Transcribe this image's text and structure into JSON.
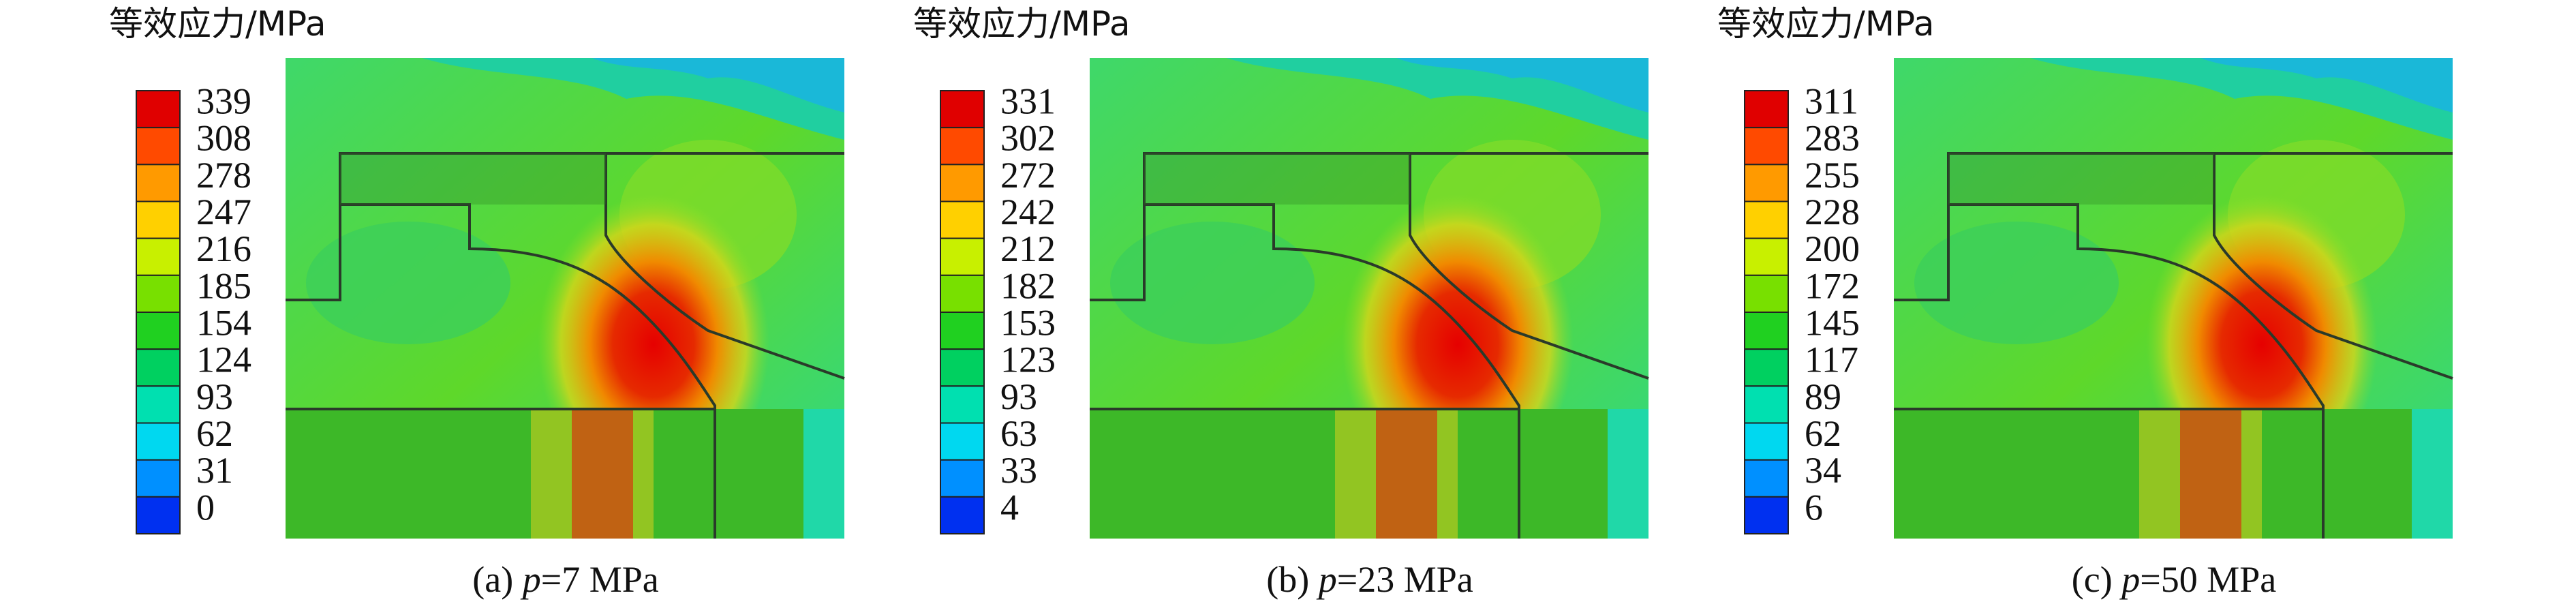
{
  "panels": [
    {
      "title": "等效应力/MPa",
      "legend": [
        "339",
        "308",
        "278",
        "247",
        "216",
        "185",
        "154",
        "124",
        "93",
        "62",
        "31",
        "0"
      ],
      "caption": {
        "label": "(a) ",
        "var": "p",
        "value": "=7 MPa"
      }
    },
    {
      "title": "等效应力/MPa",
      "legend": [
        "331",
        "302",
        "272",
        "242",
        "212",
        "182",
        "153",
        "123",
        "93",
        "63",
        "33",
        "4"
      ],
      "caption": {
        "label": "(b) ",
        "var": "p",
        "value": "=23 MPa"
      }
    },
    {
      "title": "等效应力/MPa",
      "legend": [
        "311",
        "283",
        "255",
        "228",
        "200",
        "172",
        "145",
        "117",
        "89",
        "62",
        "34",
        "6"
      ],
      "caption": {
        "label": "(c) ",
        "var": "p",
        "value": "=50 MPa"
      }
    }
  ]
}
